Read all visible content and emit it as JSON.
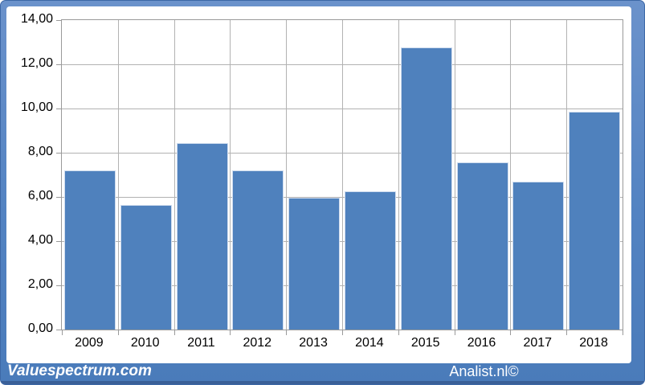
{
  "chart_data": {
    "type": "bar",
    "title": "",
    "xlabel": "",
    "ylabel": "",
    "categories": [
      "2009",
      "2010",
      "2011",
      "2012",
      "2013",
      "2014",
      "2015",
      "2016",
      "2017",
      "2018"
    ],
    "values": [
      7.2,
      5.65,
      8.45,
      7.2,
      5.95,
      6.25,
      12.75,
      7.55,
      6.7,
      9.85
    ],
    "ylim": [
      0,
      14
    ],
    "y_tick_interval": 2,
    "y_tick_labels": [
      "0,00",
      "2,00",
      "4,00",
      "6,00",
      "8,00",
      "10,00",
      "12,00",
      "14,00"
    ],
    "grid": true,
    "legend": "none",
    "bar_color": "#4f81bd",
    "bar_border_color": "#cfdcee",
    "gridline_color": "#b2b2b2",
    "axis_color": "#9a9a9a",
    "label_color": "#000000"
  },
  "footer": {
    "left_text": "Valuespectrum.com",
    "right_text": "Analist.nl©",
    "strip_color": "#5383c2",
    "edge_color": "#3a5f97",
    "text_color": "#ffffff"
  },
  "frame": {
    "color": "#5383c2",
    "panel_color": "#ffffff"
  }
}
